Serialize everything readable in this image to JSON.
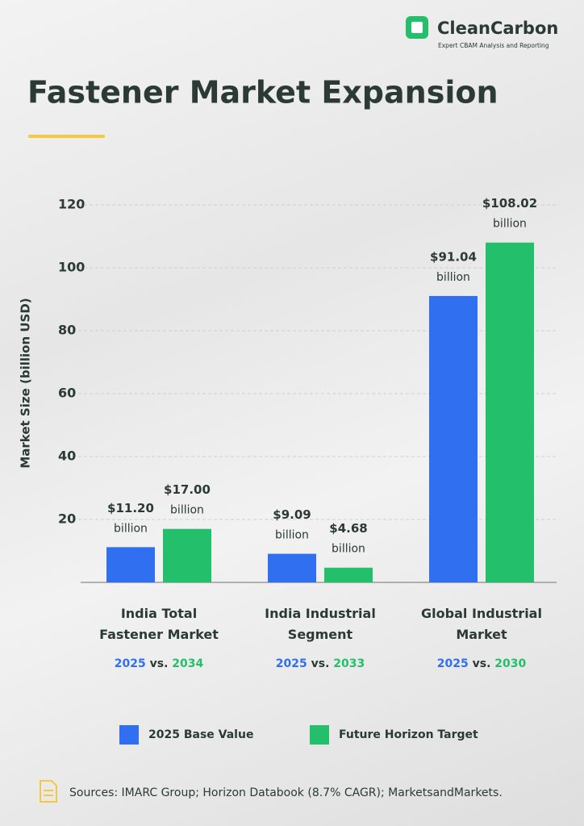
{
  "logo": {
    "name": "CleanCarbon",
    "tagline": "Expert CBAM Analysis and Reporting"
  },
  "chart_data": {
    "type": "bar",
    "title": "Fastener Market Expansion",
    "y_label": "Market Size (billion USD)",
    "categories": [
      "India Total Fastener Market",
      "India Industrial Segment",
      "Global Industrial Market"
    ],
    "comparisons": [
      {
        "base": "2025",
        "sep": "vs.",
        "target": "2034"
      },
      {
        "base": "2025",
        "sep": "vs.",
        "target": "2033"
      },
      {
        "base": "2025",
        "sep": "vs.",
        "target": "2030"
      }
    ],
    "series": [
      {
        "name": "2025 Base Value",
        "color": "#2f6ff0",
        "values": [
          11.2,
          9.09,
          91.04
        ],
        "value_labels": [
          "$11.20",
          "$9.09",
          "$91.04"
        ]
      },
      {
        "name": "Future Horizon Target",
        "color": "#23bf6a",
        "values": [
          17.0,
          4.68,
          108.02
        ],
        "value_labels": [
          "$17.00",
          "$4.68",
          "$108.02"
        ]
      }
    ],
    "value_label_unit": "billion",
    "ylim": [
      0,
      120
    ],
    "yticks": [
      20,
      40,
      60,
      80,
      100,
      120
    ],
    "grid": true
  },
  "sources": "Sources: IMARC Group; Horizon Databook (8.7% CAGR); MarketsandMarkets."
}
